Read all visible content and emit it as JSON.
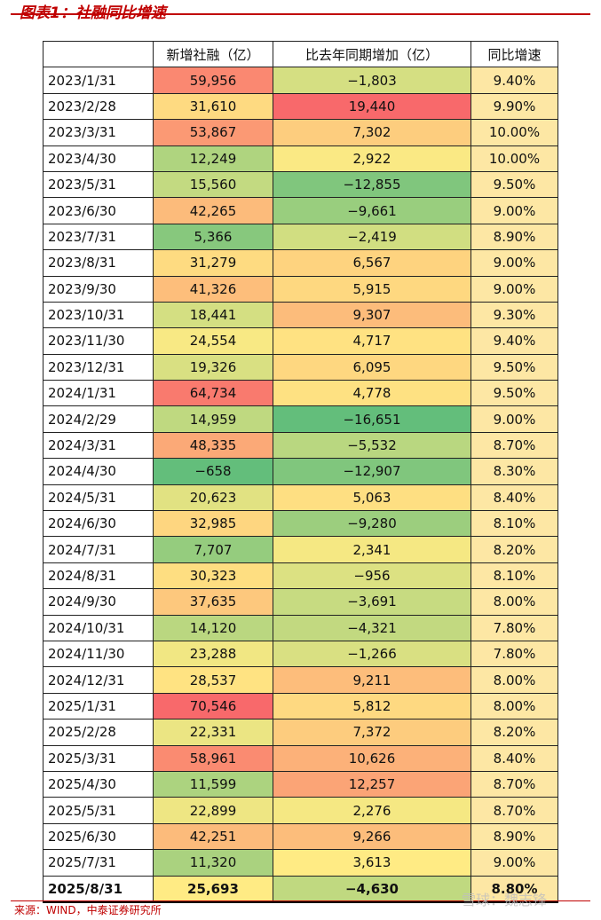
{
  "header": {
    "title": "图表1：社融同比增速"
  },
  "table": {
    "columns": [
      "新增社融（亿）",
      "比去年同期增加（亿）",
      "同比增速"
    ],
    "rows": [
      [
        "2023/1/31",
        "59,956",
        "−1,803",
        "9.40%"
      ],
      [
        "2023/2/28",
        "31,610",
        "19,440",
        "9.90%"
      ],
      [
        "2023/3/31",
        "53,867",
        "7,302",
        "10.00%"
      ],
      [
        "2023/4/30",
        "12,249",
        "2,922",
        "10.00%"
      ],
      [
        "2023/5/31",
        "15,560",
        "−12,855",
        "9.50%"
      ],
      [
        "2023/6/30",
        "42,265",
        "−9,661",
        "9.00%"
      ],
      [
        "2023/7/31",
        "5,366",
        "−2,419",
        "8.90%"
      ],
      [
        "2023/8/31",
        "31,279",
        "6,567",
        "9.00%"
      ],
      [
        "2023/9/30",
        "41,326",
        "5,915",
        "9.00%"
      ],
      [
        "2023/10/31",
        "18,441",
        "9,307",
        "9.30%"
      ],
      [
        "2023/11/30",
        "24,554",
        "4,717",
        "9.40%"
      ],
      [
        "2023/12/31",
        "19,326",
        "6,095",
        "9.50%"
      ],
      [
        "2024/1/31",
        "64,734",
        "4,778",
        "9.50%"
      ],
      [
        "2024/2/29",
        "14,959",
        "−16,651",
        "9.00%"
      ],
      [
        "2024/3/31",
        "48,335",
        "−5,532",
        "8.70%"
      ],
      [
        "2024/4/30",
        "−658",
        "−12,907",
        "8.30%"
      ],
      [
        "2024/5/31",
        "20,623",
        "5,063",
        "8.40%"
      ],
      [
        "2024/6/30",
        "32,985",
        "−9,280",
        "8.10%"
      ],
      [
        "2024/7/31",
        "7,707",
        "2,341",
        "8.20%"
      ],
      [
        "2024/8/31",
        "30,323",
        "−956",
        "8.10%"
      ],
      [
        "2024/9/30",
        "37,635",
        "−3,691",
        "8.00%"
      ],
      [
        "2024/10/31",
        "14,120",
        "−4,321",
        "7.80%"
      ],
      [
        "2024/11/30",
        "23,288",
        "−1,266",
        "7.80%"
      ],
      [
        "2024/12/31",
        "28,537",
        "9,211",
        "8.00%"
      ],
      [
        "2025/1/31",
        "70,546",
        "5,812",
        "8.00%"
      ],
      [
        "2025/2/28",
        "22,331",
        "7,372",
        "8.20%"
      ],
      [
        "2025/3/31",
        "58,961",
        "10,626",
        "8.40%"
      ],
      [
        "2025/4/30",
        "11,599",
        "12,257",
        "8.70%"
      ],
      [
        "2025/5/31",
        "22,899",
        "2,276",
        "8.70%"
      ],
      [
        "2025/6/30",
        "42,251",
        "9,266",
        "8.90%"
      ],
      [
        "2025/7/31",
        "11,320",
        "3,613",
        "9.00%"
      ],
      [
        "2025/8/31",
        "25,693",
        "−4,630",
        "8.80%"
      ]
    ]
  },
  "footer": {
    "source": "来源：WIND，中泰证券研究所",
    "watermark": "雪球：魏志锋"
  }
}
